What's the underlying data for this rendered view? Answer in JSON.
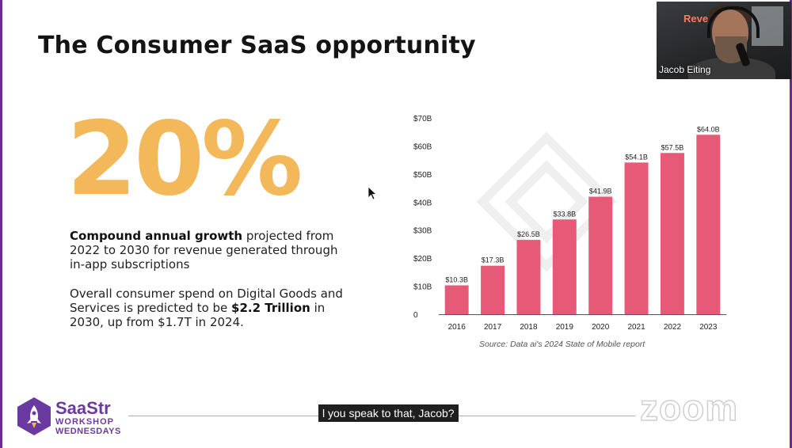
{
  "slide": {
    "title": "The Consumer SaaS opportunity",
    "big_stat": "20%",
    "para1_bold": "Compound annual growth",
    "para1_rest": " projected from 2022 to 2030 for revenue generated through in-app subscriptions",
    "para2_start": "Overall consumer spend on Digital Goods and Services is predicted to be ",
    "para2_bold": "$2.2 Trillion",
    "para2_end": " in 2030, up from $1.7T in 2024.",
    "source": "Source: Data ai's 2024 State of Mobile report"
  },
  "chart_data": {
    "type": "bar",
    "categories": [
      "2016",
      "2017",
      "2018",
      "2019",
      "2020",
      "2021",
      "2022",
      "2023"
    ],
    "values": [
      10.3,
      17.3,
      26.5,
      33.8,
      41.9,
      54.1,
      57.5,
      64.0
    ],
    "data_labels": [
      "$10.3B",
      "$17.3B",
      "$26.5B",
      "$33.8B",
      "$41.9B",
      "$54.1B",
      "$57.5B",
      "$64.0B"
    ],
    "y_ticks": [
      0,
      10,
      20,
      30,
      40,
      50,
      60,
      70
    ],
    "y_tick_labels": [
      "0",
      "$10B",
      "$20B",
      "$30B",
      "$40B",
      "$50B",
      "$60B",
      "$70B"
    ],
    "ylim": [
      0,
      70
    ],
    "grid": false,
    "bar_color": "#e65a78"
  },
  "webcam": {
    "participant_name": "Jacob Eiting",
    "sign_text": "Reve"
  },
  "footer": {
    "brand_name": "SaaStr",
    "brand_line2": "WORKSHOP",
    "brand_line3": "WEDNESDAYS",
    "caption": "l you speak to that, Jacob?",
    "watermark": "zoom"
  },
  "colors": {
    "accent_orange": "#f2b85a",
    "brand_purple": "#6b3aa0"
  }
}
